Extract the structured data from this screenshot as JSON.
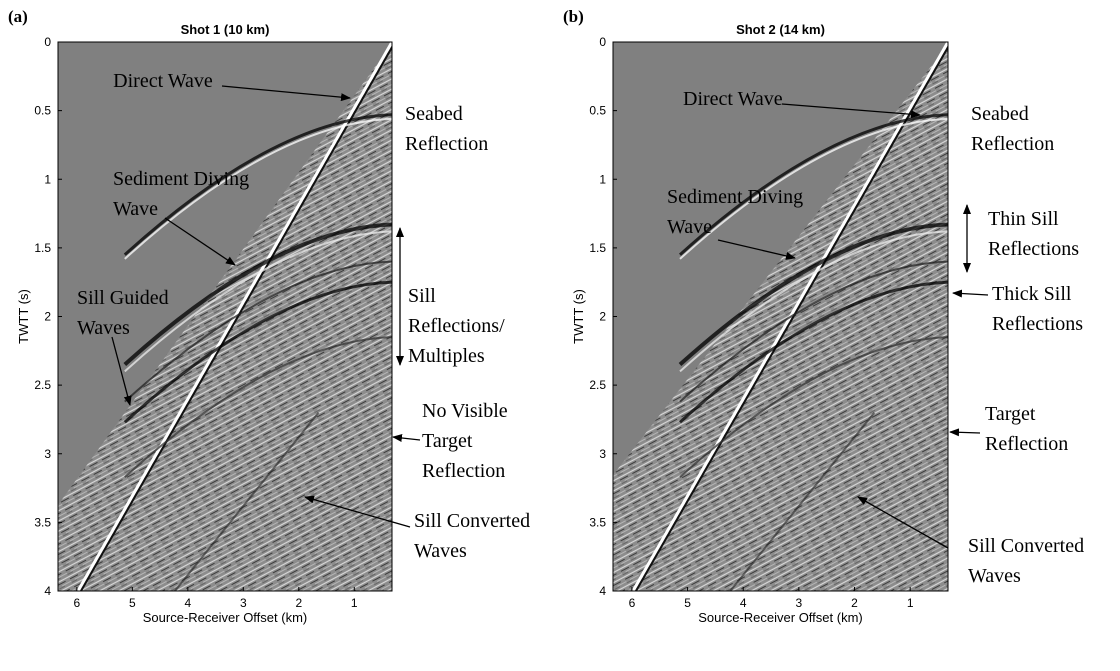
{
  "chart_data": [
    {
      "type": "image",
      "panel_label": "(a)",
      "title": "Shot 1 (10 km)",
      "xlabel": "Source-Receiver Offset (km)",
      "ylabel": "TWTT (s)",
      "xlim": [
        6.34,
        0.32
      ],
      "xticks": [
        6,
        5,
        4,
        3,
        2,
        1
      ],
      "ylim": [
        0,
        4
      ],
      "yticks": [
        0,
        0.5,
        1,
        1.5,
        2,
        2.5,
        3,
        3.5,
        4
      ],
      "annotations": [
        [
          "Direct Wave"
        ],
        [
          "Seabed",
          "Reflection"
        ],
        [
          "Sediment Diving",
          "Wave"
        ],
        [
          "Sill Guided",
          "Waves"
        ],
        [
          "Sill",
          "Reflections/",
          "Multiples"
        ],
        [
          "No Visible",
          "Target",
          "Reflection"
        ],
        [
          "Sill Converted",
          "Waves"
        ]
      ]
    },
    {
      "type": "image",
      "panel_label": "(b)",
      "title": "Shot 2 (14 km)",
      "xlabel": "Source-Receiver Offset (km)",
      "ylabel": "TWTT (s)",
      "xlim": [
        6.34,
        0.32
      ],
      "xticks": [
        6,
        5,
        4,
        3,
        2,
        1
      ],
      "ylim": [
        0,
        4
      ],
      "yticks": [
        0,
        0.5,
        1,
        1.5,
        2,
        2.5,
        3,
        3.5,
        4
      ],
      "annotations": [
        [
          "Direct Wave"
        ],
        [
          "Seabed",
          "Reflection"
        ],
        [
          "Sediment Diving",
          "Wave"
        ],
        [
          "Thin Sill",
          "Reflections"
        ],
        [
          "Thick Sill",
          "Reflections"
        ],
        [
          "Target",
          "Reflection"
        ],
        [
          "Sill Converted",
          "Waves"
        ]
      ]
    }
  ]
}
